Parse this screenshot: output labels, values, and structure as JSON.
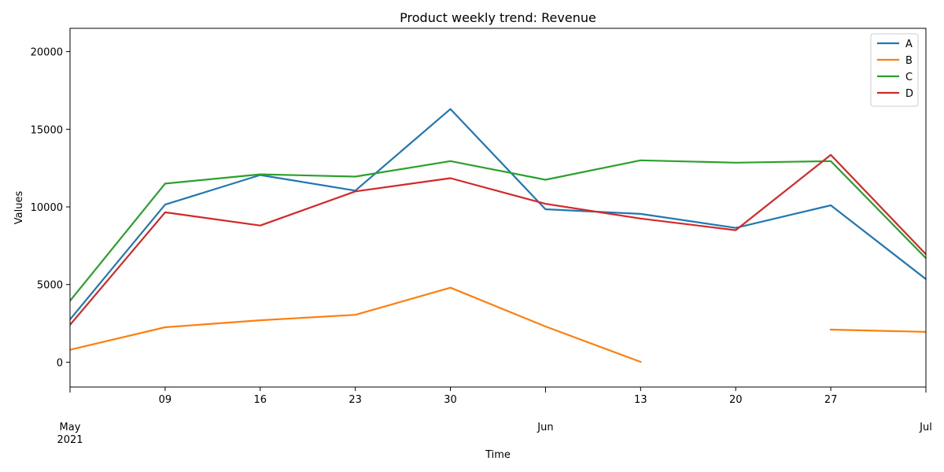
{
  "chart_data": {
    "type": "line",
    "title": "Product weekly trend: Revenue",
    "xlabel": "Time",
    "ylabel": "Values",
    "ylim": [
      -1600,
      21500
    ],
    "xlim": [
      "2021-05-02",
      "2021-07-04"
    ],
    "x": [
      "2021-05-02",
      "2021-05-09",
      "2021-05-16",
      "2021-05-23",
      "2021-05-30",
      "2021-06-06",
      "2021-06-13",
      "2021-06-20",
      "2021-06-27",
      "2021-07-04"
    ],
    "y_ticks": [
      0,
      5000,
      10000,
      15000,
      20000
    ],
    "x_ticks": [
      {
        "date": "2021-05-02",
        "label": "May",
        "sublabel": "2021"
      },
      {
        "date": "2021-05-09",
        "label": "09"
      },
      {
        "date": "2021-05-16",
        "label": "16"
      },
      {
        "date": "2021-05-23",
        "label": "23"
      },
      {
        "date": "2021-05-30",
        "label": "30"
      },
      {
        "date": "2021-06-06",
        "label": "Jun"
      },
      {
        "date": "2021-06-13",
        "label": "13"
      },
      {
        "date": "2021-06-20",
        "label": "20"
      },
      {
        "date": "2021-06-27",
        "label": "27"
      },
      {
        "date": "2021-07-04",
        "label": "Jul"
      }
    ],
    "grid": false,
    "legend_position": "top-right",
    "series": [
      {
        "name": "A",
        "color": "#1f77b4",
        "values": [
          2750,
          10150,
          12050,
          11050,
          16300,
          9850,
          9550,
          8650,
          10100,
          5350
        ]
      },
      {
        "name": "B",
        "color": "#ff7f0e",
        "values": [
          800,
          2250,
          2700,
          3050,
          4800,
          2300,
          20,
          null,
          2100,
          1950
        ]
      },
      {
        "name": "C",
        "color": "#2ca02c",
        "values": [
          3950,
          11500,
          12100,
          11950,
          12950,
          11750,
          13000,
          12850,
          12950,
          6700
        ]
      },
      {
        "name": "D",
        "color": "#d62728",
        "values": [
          2400,
          9650,
          8800,
          11000,
          11850,
          10200,
          9250,
          8500,
          13350,
          6950
        ]
      }
    ]
  }
}
